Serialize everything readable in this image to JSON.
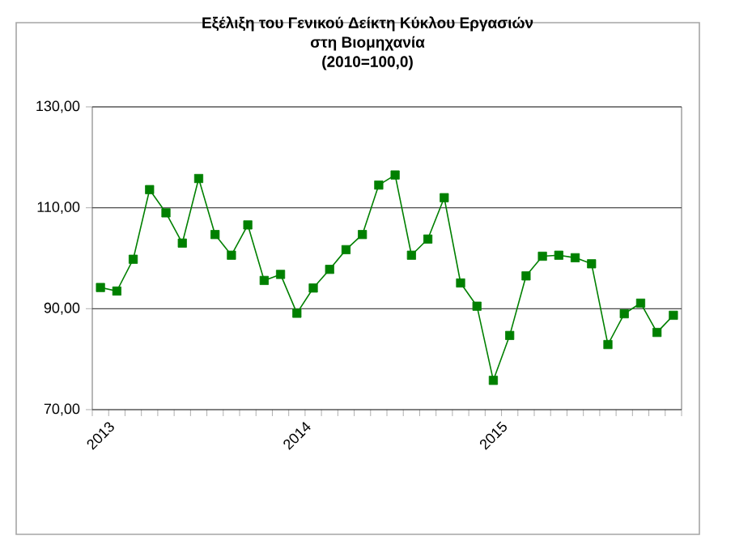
{
  "chart_data": {
    "type": "line",
    "title": "Εξέλιξη του Γενικού Δείκτη Κύκλου Εργασιών\nστη Βιομηχανία\n(2010=100,0)",
    "categories": [
      "2013",
      null,
      null,
      null,
      null,
      null,
      null,
      null,
      null,
      null,
      null,
      null,
      "2014",
      null,
      null,
      null,
      null,
      null,
      null,
      null,
      null,
      null,
      null,
      null,
      "2015",
      null,
      null,
      null,
      null,
      null,
      null,
      null,
      null,
      null,
      null,
      null
    ],
    "series": [
      {
        "color": "#008000",
        "values": [
          94.2,
          93.5,
          99.8,
          113.6,
          109.0,
          103.0,
          115.8,
          104.7,
          100.6,
          106.6,
          95.6,
          96.8,
          89.1,
          94.1,
          97.8,
          101.7,
          104.7,
          114.5,
          116.5,
          100.6,
          103.8,
          112.0,
          95.1,
          90.5,
          75.8,
          84.7,
          96.5,
          100.4,
          100.6,
          100.1,
          98.9,
          82.9,
          89.0,
          91.1,
          85.3,
          88.7
        ]
      }
    ],
    "ylim": [
      70,
      130
    ],
    "yticks": [
      {
        "value": 70,
        "label": "70,00"
      },
      {
        "value": 90,
        "label": "90,00"
      },
      {
        "value": 110,
        "label": "110,00"
      },
      {
        "value": 130,
        "label": "130,00"
      }
    ],
    "grid": "y",
    "legend": false,
    "marker": "square",
    "line_style": "solid"
  }
}
